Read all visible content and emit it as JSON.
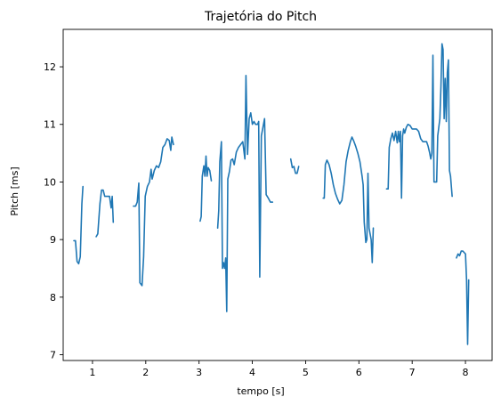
{
  "chart_data": {
    "type": "line",
    "title": "Trajetória do Pitch",
    "xlabel": "tempo [s]",
    "ylabel": "Pitch [ms]",
    "xlim": [
      0.45,
      8.5
    ],
    "ylim": [
      6.9,
      12.65
    ],
    "xticks": [
      1,
      2,
      3,
      4,
      5,
      6,
      7,
      8
    ],
    "yticks": [
      7,
      8,
      9,
      10,
      11,
      12
    ],
    "grid": false,
    "color": "#1f77b4",
    "segments": [
      [
        [
          0.65,
          8.98
        ],
        [
          0.68,
          8.98
        ],
        [
          0.71,
          8.62
        ],
        [
          0.74,
          8.58
        ],
        [
          0.77,
          8.7
        ],
        [
          0.8,
          9.62
        ],
        [
          0.82,
          9.92
        ]
      ],
      [
        [
          1.07,
          9.05
        ],
        [
          1.1,
          9.1
        ],
        [
          1.14,
          9.62
        ],
        [
          1.17,
          9.86
        ],
        [
          1.2,
          9.86
        ],
        [
          1.23,
          9.75
        ],
        [
          1.28,
          9.75
        ],
        [
          1.32,
          9.75
        ],
        [
          1.35,
          9.55
        ],
        [
          1.37,
          9.75
        ],
        [
          1.39,
          9.3
        ]
      ],
      [
        [
          1.77,
          9.58
        ],
        [
          1.81,
          9.58
        ],
        [
          1.84,
          9.65
        ],
        [
          1.87,
          9.98
        ],
        [
          1.89,
          8.25
        ],
        [
          1.93,
          8.2
        ],
        [
          1.96,
          8.7
        ],
        [
          1.99,
          9.75
        ],
        [
          2.03,
          9.92
        ],
        [
          2.07,
          10.0
        ],
        [
          2.1,
          10.22
        ],
        [
          2.12,
          10.05
        ],
        [
          2.16,
          10.2
        ],
        [
          2.2,
          10.28
        ],
        [
          2.24,
          10.25
        ],
        [
          2.28,
          10.35
        ],
        [
          2.32,
          10.6
        ],
        [
          2.36,
          10.65
        ],
        [
          2.4,
          10.75
        ],
        [
          2.44,
          10.72
        ],
        [
          2.47,
          10.55
        ],
        [
          2.49,
          10.78
        ],
        [
          2.52,
          10.65
        ]
      ],
      [
        [
          3.02,
          9.32
        ],
        [
          3.04,
          9.4
        ],
        [
          3.06,
          10.1
        ],
        [
          3.09,
          10.28
        ],
        [
          3.11,
          10.1
        ],
        [
          3.13,
          10.45
        ],
        [
          3.15,
          10.1
        ],
        [
          3.17,
          10.25
        ],
        [
          3.2,
          10.2
        ],
        [
          3.23,
          10.02
        ]
      ],
      [
        [
          3.35,
          9.2
        ],
        [
          3.37,
          9.5
        ],
        [
          3.39,
          10.35
        ],
        [
          3.42,
          10.7
        ],
        [
          3.44,
          8.5
        ],
        [
          3.46,
          8.6
        ],
        [
          3.48,
          8.5
        ],
        [
          3.5,
          8.68
        ],
        [
          3.52,
          7.75
        ],
        [
          3.54,
          10.05
        ],
        [
          3.57,
          10.18
        ],
        [
          3.6,
          10.38
        ],
        [
          3.63,
          10.4
        ],
        [
          3.66,
          10.3
        ],
        [
          3.7,
          10.52
        ],
        [
          3.74,
          10.6
        ],
        [
          3.78,
          10.65
        ],
        [
          3.82,
          10.7
        ],
        [
          3.84,
          10.55
        ],
        [
          3.86,
          10.4
        ],
        [
          3.88,
          11.85
        ],
        [
          3.91,
          10.48
        ],
        [
          3.94,
          11.1
        ],
        [
          3.97,
          11.2
        ],
        [
          4.0,
          11.0
        ],
        [
          4.03,
          11.05
        ],
        [
          4.06,
          11.0
        ],
        [
          4.1,
          11.0
        ],
        [
          4.12,
          11.05
        ],
        [
          4.14,
          8.35
        ],
        [
          4.17,
          10.8
        ],
        [
          4.2,
          10.95
        ],
        [
          4.23,
          11.1
        ],
        [
          4.26,
          9.78
        ],
        [
          4.3,
          9.72
        ],
        [
          4.34,
          9.65
        ],
        [
          4.38,
          9.65
        ]
      ],
      [
        [
          4.72,
          10.4
        ],
        [
          4.75,
          10.25
        ],
        [
          4.78,
          10.27
        ],
        [
          4.81,
          10.15
        ],
        [
          4.84,
          10.15
        ],
        [
          4.87,
          10.27
        ]
      ],
      [
        [
          5.33,
          9.72
        ],
        [
          5.35,
          9.72
        ],
        [
          5.37,
          10.3
        ],
        [
          5.4,
          10.38
        ],
        [
          5.44,
          10.3
        ],
        [
          5.48,
          10.15
        ],
        [
          5.52,
          9.95
        ],
        [
          5.56,
          9.8
        ],
        [
          5.6,
          9.7
        ],
        [
          5.64,
          9.62
        ],
        [
          5.68,
          9.68
        ],
        [
          5.72,
          9.95
        ],
        [
          5.76,
          10.35
        ],
        [
          5.8,
          10.55
        ],
        [
          5.84,
          10.7
        ],
        [
          5.87,
          10.78
        ],
        [
          5.9,
          10.72
        ],
        [
          5.94,
          10.62
        ],
        [
          5.98,
          10.5
        ],
        [
          6.02,
          10.35
        ],
        [
          6.06,
          10.1
        ],
        [
          6.08,
          9.95
        ],
        [
          6.1,
          9.3
        ],
        [
          6.13,
          8.95
        ],
        [
          6.15,
          9.0
        ],
        [
          6.17,
          10.15
        ],
        [
          6.19,
          9.2
        ],
        [
          6.21,
          9.1
        ],
        [
          6.23,
          9.0
        ],
        [
          6.25,
          8.6
        ],
        [
          6.27,
          9.2
        ]
      ],
      [
        [
          6.52,
          9.88
        ],
        [
          6.55,
          9.88
        ],
        [
          6.57,
          10.6
        ],
        [
          6.6,
          10.75
        ],
        [
          6.63,
          10.85
        ],
        [
          6.66,
          10.72
        ],
        [
          6.69,
          10.88
        ],
        [
          6.72,
          10.68
        ],
        [
          6.74,
          10.88
        ],
        [
          6.76,
          10.7
        ],
        [
          6.78,
          10.88
        ],
        [
          6.8,
          9.72
        ],
        [
          6.82,
          10.8
        ],
        [
          6.84,
          10.92
        ],
        [
          6.86,
          10.85
        ],
        [
          6.89,
          10.95
        ],
        [
          6.92,
          11.0
        ],
        [
          6.96,
          10.98
        ],
        [
          7.0,
          10.92
        ],
        [
          7.04,
          10.92
        ],
        [
          7.08,
          10.92
        ],
        [
          7.12,
          10.88
        ],
        [
          7.16,
          10.75
        ],
        [
          7.2,
          10.7
        ],
        [
          7.24,
          10.7
        ],
        [
          7.27,
          10.7
        ],
        [
          7.3,
          10.62
        ],
        [
          7.33,
          10.5
        ],
        [
          7.35,
          10.4
        ],
        [
          7.37,
          10.5
        ],
        [
          7.39,
          12.2
        ],
        [
          7.41,
          10.0
        ],
        [
          7.44,
          10.0
        ],
        [
          7.46,
          10.0
        ],
        [
          7.48,
          10.8
        ],
        [
          7.52,
          11.1
        ],
        [
          7.54,
          11.65
        ],
        [
          7.56,
          12.4
        ],
        [
          7.58,
          12.3
        ],
        [
          7.6,
          11.1
        ],
        [
          7.62,
          11.8
        ],
        [
          7.64,
          11.05
        ],
        [
          7.66,
          11.9
        ],
        [
          7.68,
          12.12
        ],
        [
          7.7,
          10.2
        ],
        [
          7.72,
          10.1
        ],
        [
          7.75,
          9.75
        ]
      ],
      [
        [
          7.83,
          8.68
        ],
        [
          7.86,
          8.75
        ],
        [
          7.89,
          8.72
        ],
        [
          7.92,
          8.8
        ],
        [
          7.95,
          8.8
        ],
        [
          7.98,
          8.77
        ],
        [
          8.0,
          8.75
        ],
        [
          8.02,
          8.3
        ],
        [
          8.04,
          7.18
        ],
        [
          8.06,
          8.3
        ]
      ]
    ]
  }
}
